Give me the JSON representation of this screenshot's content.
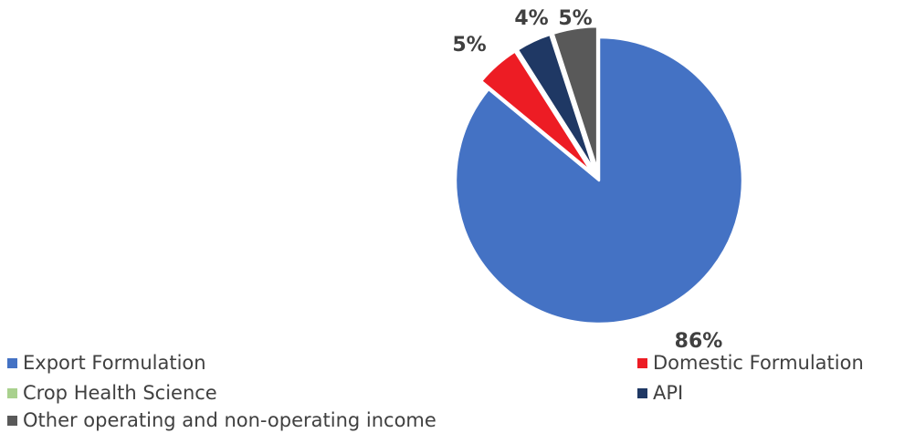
{
  "chart_data": {
    "type": "pie",
    "title": "",
    "slices": [
      {
        "name": "Export Formulation",
        "value": 86,
        "label": "86%",
        "color": "#4472C4"
      },
      {
        "name": "Domestic Formulation",
        "value": 5,
        "label": "5%",
        "color": "#ED1C24"
      },
      {
        "name": "Crop Health Science",
        "value": 0,
        "label": "",
        "color": "#A9D18E"
      },
      {
        "name": "API",
        "value": 4,
        "label": "4%",
        "color": "#1F3864"
      },
      {
        "name": "Other operating and non-operating income",
        "value": 5,
        "label": "5%",
        "color": "#595959"
      }
    ],
    "exploded": true,
    "legend_position": "bottom"
  }
}
